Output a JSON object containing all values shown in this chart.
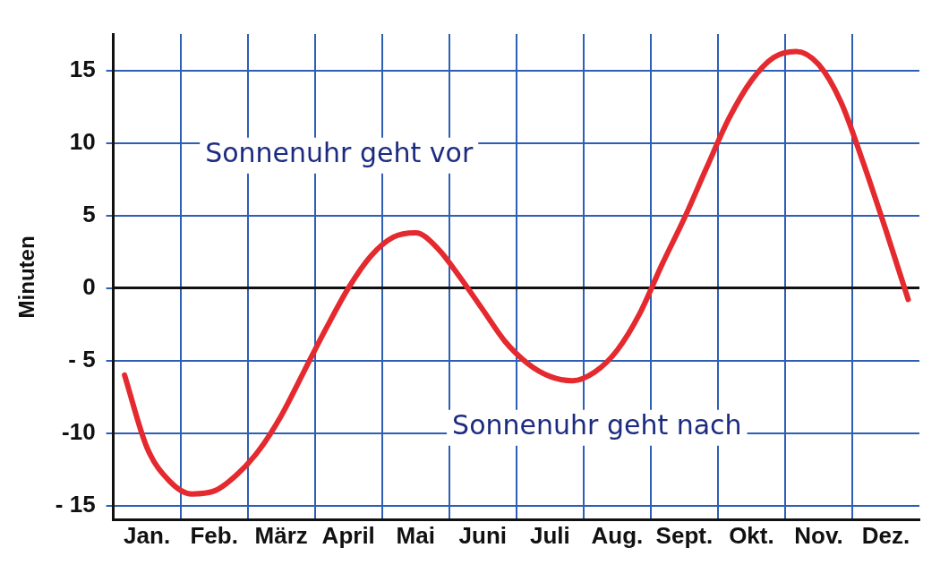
{
  "chart_data": {
    "type": "line",
    "ylabel": "Minuten",
    "categories": [
      null,
      "Jan.",
      null,
      null,
      "Feb.",
      null,
      null,
      "März",
      null,
      null,
      "April",
      null,
      null,
      "Mai",
      null,
      null,
      "Juni",
      null,
      null,
      "Juli",
      null,
      null,
      "Aug.",
      null,
      null,
      "Sept.",
      null,
      null,
      "Okt.",
      null,
      null,
      "Nov.",
      null,
      null,
      "Dez.",
      null
    ],
    "series": [
      {
        "color": "#e42a2f",
        "values": [
          -6,
          -11,
          -13.3,
          -14.2,
          -14,
          -12.9,
          -11.2,
          -8.8,
          -5.8,
          -2.8,
          0,
          2.2,
          3.5,
          3.8,
          2.7,
          0.7,
          -1.5,
          -3.7,
          -5.2,
          -6.1,
          -6.4,
          -5.8,
          -4.3,
          -1.8,
          1.6,
          4.8,
          8.3,
          11.7,
          14.3,
          15.9,
          16.3,
          15.4,
          12.8,
          8.6,
          4,
          -0.8
        ]
      }
    ],
    "ylim": [
      -16,
      17.5
    ],
    "yticks": [
      {
        "value": -15,
        "label": "- 15"
      },
      {
        "value": -10,
        "label": "-10"
      },
      {
        "value": -5,
        "label": "- 5"
      },
      0,
      5,
      10,
      15
    ],
    "ref_lines": [
      {
        "axis": "y",
        "value": 0,
        "color": "#111111"
      }
    ],
    "annotations": [
      "Sonnenuhr geht vor",
      "Sonnenuhr geht nach"
    ],
    "grid": true,
    "marker": "none",
    "line_style": "solid",
    "legend": false
  }
}
